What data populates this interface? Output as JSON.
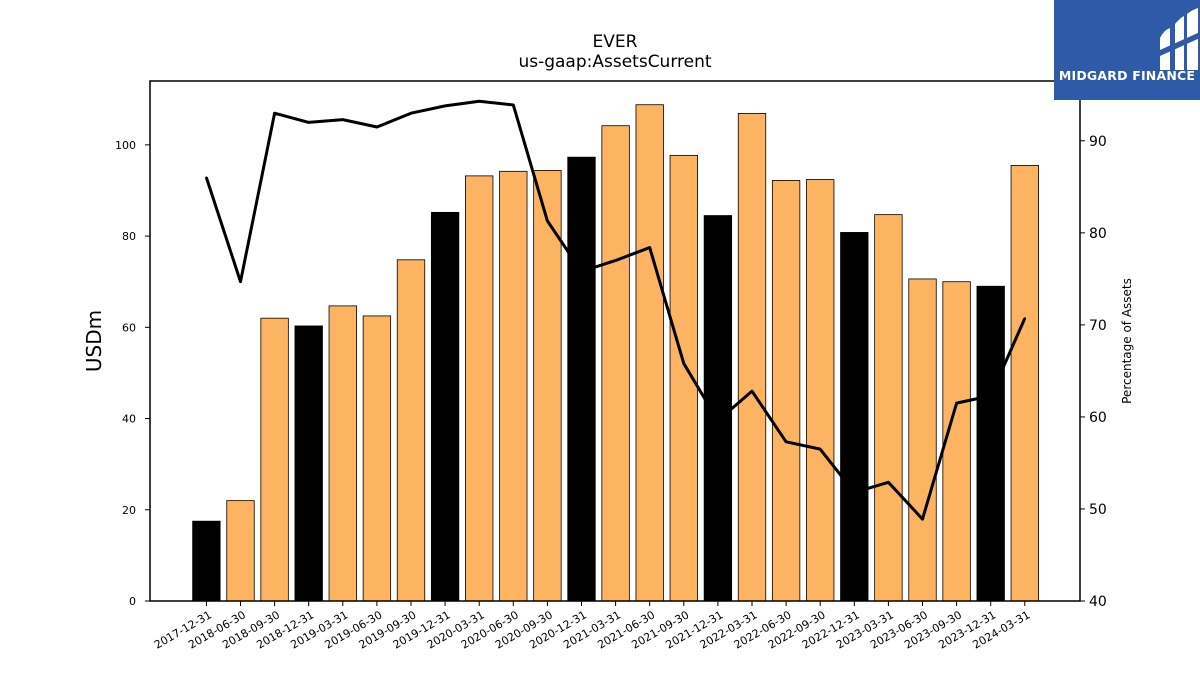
{
  "chart_data": {
    "type": "bar+line",
    "title": "EVER",
    "subtitle": "us-gaap:AssetsCurrent",
    "ylabel": "USDm",
    "y2label": "Percentage of Assets",
    "ylim": [
      0,
      114
    ],
    "y2lim": [
      40,
      96.5
    ],
    "yticks": [
      0,
      20,
      40,
      60,
      80,
      100
    ],
    "y2ticks": [
      40,
      50,
      60,
      70,
      80,
      90
    ],
    "categories": [
      "2017-12-31",
      "2018-06-30",
      "2018-09-30",
      "2018-12-31",
      "2019-03-31",
      "2019-06-30",
      "2019-09-30",
      "2019-12-31",
      "2020-03-31",
      "2020-06-30",
      "2020-09-30",
      "2020-12-31",
      "2021-03-31",
      "2021-06-30",
      "2021-09-30",
      "2021-12-31",
      "2022-03-31",
      "2022-06-30",
      "2022-09-30",
      "2022-12-31",
      "2023-03-31",
      "2023-06-30",
      "2023-09-30",
      "2023-12-31",
      "2024-03-31"
    ],
    "bars": {
      "name": "AssetsCurrent",
      "values": [
        17.5,
        22.0,
        62.0,
        60.3,
        64.7,
        62.5,
        74.8,
        85.2,
        93.2,
        94.2,
        94.4,
        97.3,
        104.2,
        108.8,
        97.7,
        84.5,
        106.9,
        92.2,
        92.4,
        80.8,
        84.7,
        70.6,
        70.0,
        69.0,
        95.5
      ],
      "highlight": [
        true,
        false,
        false,
        true,
        false,
        false,
        false,
        true,
        false,
        false,
        false,
        true,
        false,
        false,
        false,
        true,
        false,
        false,
        false,
        true,
        false,
        false,
        false,
        true,
        false
      ],
      "color": "#fdb462",
      "highlight_color": "#000000"
    },
    "line": {
      "name": "Percentage of Assets",
      "values": [
        86.0,
        74.7,
        93.0,
        92.0,
        92.3,
        91.5,
        93.0,
        93.8,
        94.3,
        93.9,
        81.3,
        75.8,
        77.0,
        78.4,
        65.8,
        59.6,
        62.8,
        57.3,
        56.5,
        51.8,
        52.9,
        48.9,
        61.5,
        62.3,
        70.7
      ],
      "color": "#000000"
    }
  },
  "logo": {
    "text": "MIDGARD FINANCE",
    "color": "#2e5aa8"
  }
}
